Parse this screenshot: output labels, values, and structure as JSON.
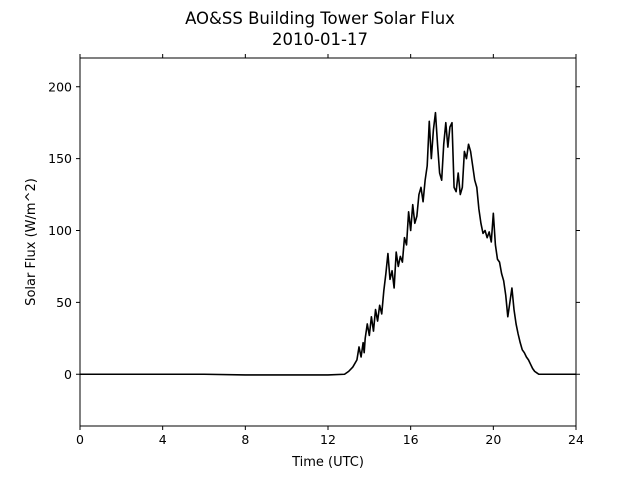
{
  "chart_data": {
    "type": "line",
    "title": "AO&SS Building Tower Solar Flux",
    "subtitle": "2010-01-17",
    "xlabel": "Time (UTC)",
    "ylabel": "Solar Flux (W/m^2)",
    "xlim": [
      0,
      24
    ],
    "ylim": [
      -36,
      220
    ],
    "xticks": [
      0,
      4,
      8,
      12,
      16,
      20,
      24
    ],
    "yticks": [
      0,
      50,
      100,
      150,
      200
    ],
    "grid": false,
    "legend": "none",
    "line_color": "#000000",
    "series": [
      {
        "x": [
          0,
          2,
          4,
          6,
          8,
          10,
          12,
          12.8,
          13.0,
          13.2,
          13.4,
          13.5,
          13.6,
          13.7,
          13.75,
          13.8,
          13.9,
          14.0,
          14.1,
          14.2,
          14.3,
          14.4,
          14.5,
          14.6,
          14.7,
          14.8,
          14.9,
          15.0,
          15.1,
          15.2,
          15.3,
          15.4,
          15.5,
          15.6,
          15.7,
          15.8,
          15.9,
          16.0,
          16.1,
          16.2,
          16.3,
          16.4,
          16.5,
          16.6,
          16.7,
          16.8,
          16.9,
          17.0,
          17.1,
          17.2,
          17.3,
          17.4,
          17.5,
          17.6,
          17.7,
          17.8,
          17.9,
          18.0,
          18.1,
          18.2,
          18.3,
          18.4,
          18.5,
          18.6,
          18.7,
          18.8,
          18.9,
          19.0,
          19.1,
          19.2,
          19.3,
          19.4,
          19.5,
          19.6,
          19.7,
          19.8,
          19.9,
          20.0,
          20.1,
          20.2,
          20.3,
          20.4,
          20.5,
          20.6,
          20.7,
          20.8,
          20.9,
          21.0,
          21.1,
          21.2,
          21.3,
          21.4,
          21.5,
          21.6,
          21.7,
          21.8,
          21.9,
          22.0,
          22.1,
          22.2,
          22.3,
          22.4,
          22.5,
          22.6,
          22.7,
          22.8,
          22.9,
          23.0,
          23.2,
          23.4,
          23.6,
          24.0
        ],
        "y": [
          0,
          0,
          0,
          0,
          -0.5,
          -0.5,
          -0.5,
          0,
          2,
          5,
          10,
          19,
          12,
          22,
          15,
          25,
          35,
          27,
          40,
          30,
          45,
          37,
          48,
          42,
          58,
          70,
          84,
          66,
          72,
          60,
          85,
          75,
          82,
          78,
          95,
          90,
          113,
          100,
          118,
          105,
          110,
          125,
          130,
          120,
          135,
          145,
          176,
          150,
          170,
          182,
          160,
          140,
          135,
          160,
          175,
          158,
          172,
          175,
          130,
          127,
          140,
          125,
          130,
          155,
          150,
          160,
          155,
          145,
          135,
          130,
          115,
          105,
          98,
          100,
          95,
          99,
          92,
          112,
          90,
          80,
          78,
          70,
          65,
          55,
          40,
          50,
          60,
          45,
          35,
          28,
          22,
          17,
          15,
          12,
          10,
          7,
          4,
          2,
          1,
          0,
          0,
          0,
          0,
          0,
          0,
          0,
          0,
          0,
          0,
          0,
          0,
          0
        ]
      }
    ]
  }
}
